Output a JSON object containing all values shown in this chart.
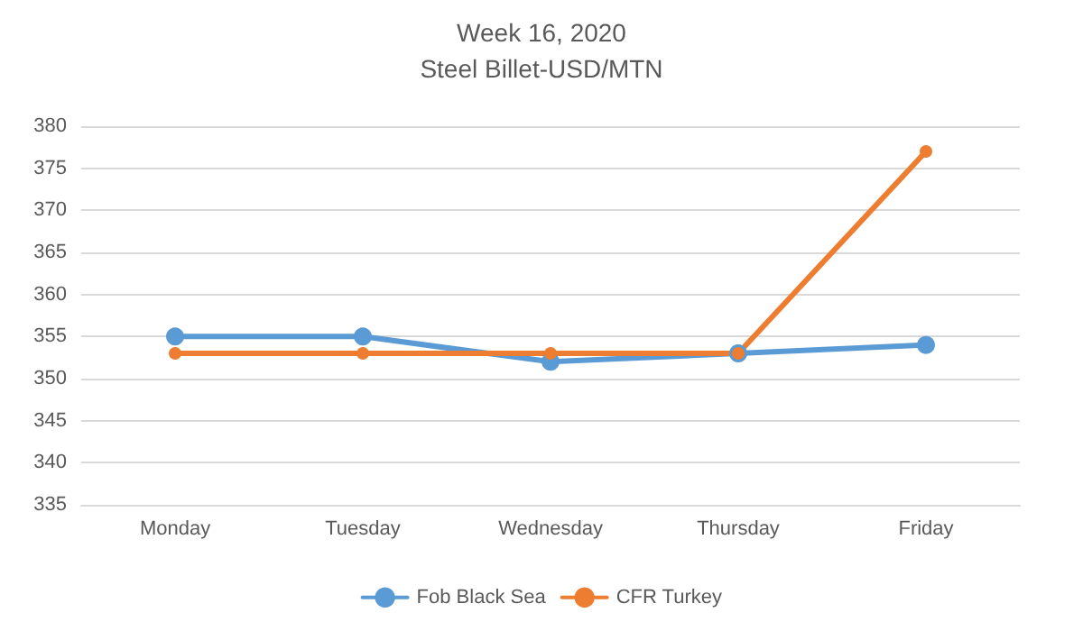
{
  "chart_data": {
    "type": "line",
    "title": "Week 16, 2020",
    "subtitle": "Steel Billet-USD/MTN",
    "categories": [
      "Monday",
      "Tuesday",
      "Wednesday",
      "Thursday",
      "Friday"
    ],
    "series": [
      {
        "name": "Fob Black Sea",
        "color": "#5b9bd5",
        "values": [
          355,
          355,
          352,
          353,
          354
        ]
      },
      {
        "name": "CFR Turkey",
        "color": "#ed7d31",
        "values": [
          353,
          353,
          353,
          353,
          377
        ]
      }
    ],
    "ylim": [
      335,
      380
    ],
    "yticks": [
      335,
      340,
      345,
      350,
      355,
      360,
      365,
      370,
      375,
      380
    ],
    "grid": "y",
    "legend": "bottom",
    "marker": "circle",
    "line_style": "solid"
  }
}
